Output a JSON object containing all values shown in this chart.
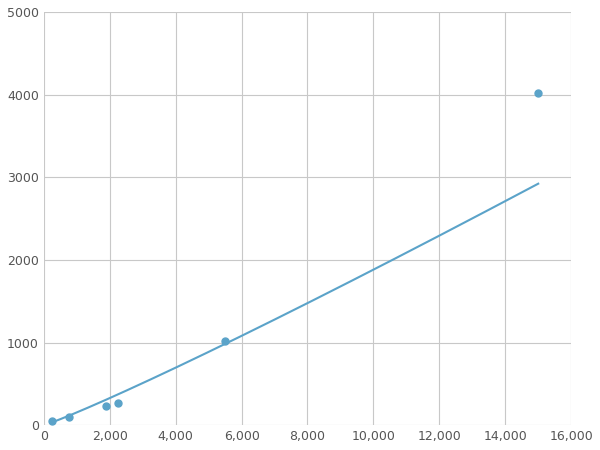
{
  "x": [
    250,
    750,
    1875,
    2250,
    5500,
    15000
  ],
  "y": [
    50,
    100,
    230,
    270,
    1020,
    4020
  ],
  "line_color": "#5ba3c9",
  "marker_color": "#5ba3c9",
  "marker_size": 5,
  "line_width": 1.5,
  "xlim": [
    0,
    16000
  ],
  "ylim": [
    0,
    5000
  ],
  "xticks": [
    0,
    2000,
    4000,
    6000,
    8000,
    10000,
    12000,
    14000,
    16000
  ],
  "yticks": [
    0,
    1000,
    2000,
    3000,
    4000,
    5000
  ],
  "grid_color": "#c8c8c8",
  "bg_color": "#ffffff",
  "figsize": [
    6.0,
    4.5
  ],
  "dpi": 100
}
